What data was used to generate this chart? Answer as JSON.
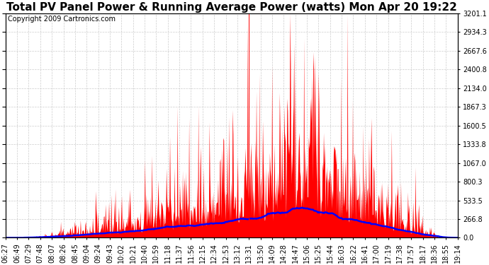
{
  "title": "Total PV Panel Power & Running Average Power (watts) Mon Apr 20 19:22",
  "copyright": "Copyright 2009 Cartronics.com",
  "background_color": "#ffffff",
  "plot_bg_color": "#ffffff",
  "ylim": [
    0.0,
    3201.1
  ],
  "yticks": [
    0.0,
    266.8,
    533.5,
    800.3,
    1067.0,
    1333.8,
    1600.5,
    1867.3,
    2134.0,
    2400.8,
    2667.6,
    2934.3,
    3201.1
  ],
  "xlabels": [
    "06:27",
    "06:49",
    "07:29",
    "07:48",
    "08:07",
    "08:26",
    "08:45",
    "09:04",
    "09:24",
    "09:43",
    "10:02",
    "10:21",
    "10:40",
    "10:59",
    "11:18",
    "11:37",
    "11:56",
    "12:15",
    "12:34",
    "12:53",
    "13:12",
    "13:31",
    "13:50",
    "14:09",
    "14:28",
    "14:47",
    "15:06",
    "15:25",
    "15:44",
    "16:03",
    "16:22",
    "16:41",
    "17:00",
    "17:19",
    "17:38",
    "17:57",
    "18:17",
    "18:36",
    "18:55",
    "19:14"
  ],
  "grid_color": "#cccccc",
  "grid_linestyle": "--",
  "red_color": "#ff0000",
  "blue_color": "#0000ff",
  "title_fontsize": 11,
  "copyright_fontsize": 7,
  "tick_fontsize": 7,
  "vertical_line_x": 21,
  "vertical_line_color": "#ff0000"
}
